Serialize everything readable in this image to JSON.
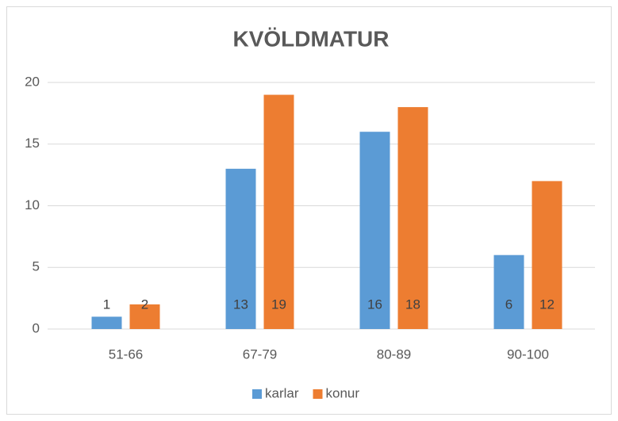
{
  "chart_data": {
    "type": "bar",
    "title": "KVÖLDMATUR",
    "categories": [
      "51-66",
      "67-79",
      "80-89",
      "90-100"
    ],
    "series": [
      {
        "name": "karlar",
        "color": "#5b9bd5",
        "values": [
          1,
          13,
          16,
          6
        ]
      },
      {
        "name": "konur",
        "color": "#ed7d31",
        "values": [
          2,
          19,
          18,
          12
        ]
      }
    ],
    "ylim": [
      0,
      20
    ],
    "yticks": [
      0,
      5,
      10,
      15,
      20
    ],
    "grid": true,
    "legend": "bottom",
    "data_labels": true
  }
}
